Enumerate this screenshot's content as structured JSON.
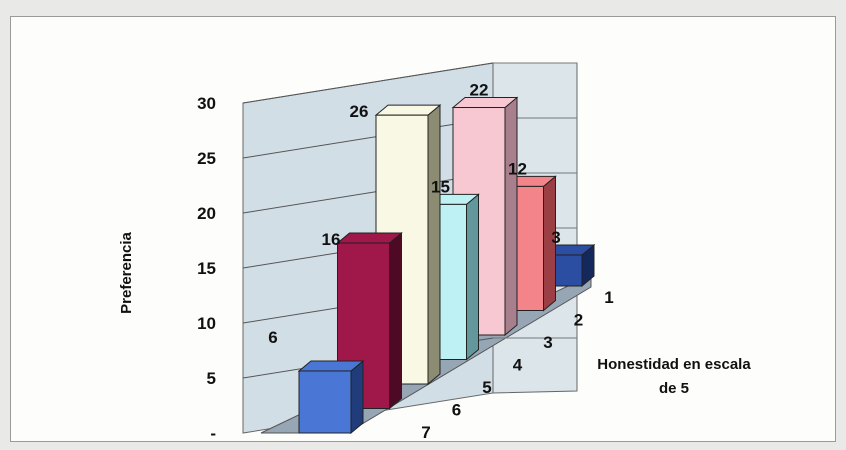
{
  "chart_data": {
    "type": "bar",
    "style": "3d-column",
    "title": "",
    "ylabel": "Preferencia",
    "xlabel_line1": "Honestidad en escala",
    "xlabel_line2": "de 5",
    "ylim": [
      0,
      30
    ],
    "yticks": [
      "-",
      "5",
      "10",
      "15",
      "20",
      "25",
      "30"
    ],
    "grid": true,
    "categories": [
      "1",
      "2",
      "3",
      "4",
      "5",
      "6",
      "7"
    ],
    "values": [
      3,
      12,
      22,
      15,
      26,
      16,
      6
    ],
    "colors": [
      "#2b4ea3",
      "#f3858a",
      "#f7c7d2",
      "#bdf1f4",
      "#f8f8e4",
      "#a0184a",
      "#4a76d6"
    ],
    "colors_dark": [
      "#14285c",
      "#9c3f45",
      "#a87f8c",
      "#62979c",
      "#8c8c72",
      "#4e0a24",
      "#203c7a"
    ],
    "wall_color": "#d2dee6",
    "floor_color": "#97a6b4"
  }
}
